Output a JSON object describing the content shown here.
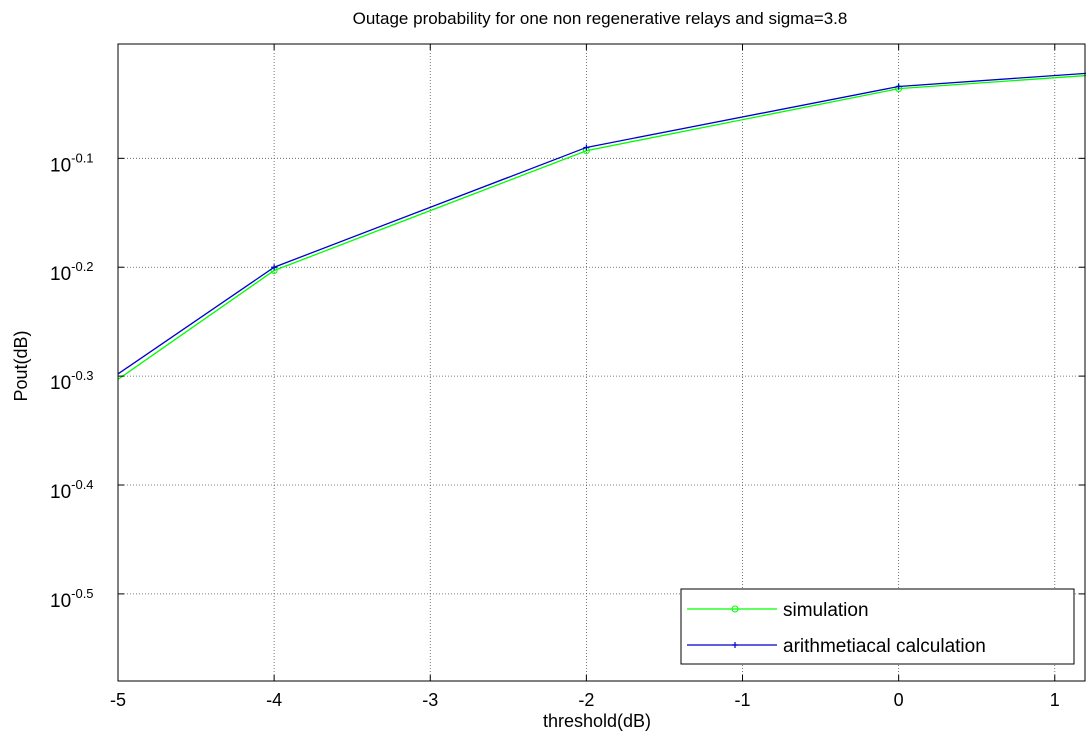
{
  "chart_data": {
    "type": "line",
    "title": "Outage probability for one non regenerative relays and sigma=3.8",
    "xlabel": "threshold(dB)",
    "ylabel": "Pout(dB)",
    "xlim": [
      -5,
      1.2
    ],
    "ylim_log10": [
      -0.58,
      0.005
    ],
    "y_scale": "log",
    "grid": true,
    "x_ticks": [
      "-5",
      "-4",
      "-3",
      "-2",
      "-1",
      "0",
      "1"
    ],
    "x_tick_values": [
      -5,
      -4,
      -3,
      -2,
      -1,
      0,
      1
    ],
    "y_ticks": [
      {
        "base": "10",
        "exp": "-0.1",
        "value_log10": -0.1
      },
      {
        "base": "10",
        "exp": "-0.2",
        "value_log10": -0.2
      },
      {
        "base": "10",
        "exp": "-0.3",
        "value_log10": -0.3
      },
      {
        "base": "10",
        "exp": "-0.4",
        "value_log10": -0.4
      },
      {
        "base": "10",
        "exp": "-0.5",
        "value_log10": -0.5
      }
    ],
    "legend_position": "bottom-right",
    "x": [
      -5,
      -4,
      -2,
      0,
      1.2
    ],
    "series": [
      {
        "name": "simulation",
        "color": "#00ff00",
        "marker": "circle",
        "marker_x": [
          -4,
          -2,
          0
        ],
        "y_log10": [
          -0.303,
          -0.203,
          -0.093,
          -0.036,
          -0.024
        ]
      },
      {
        "name": "arithmetiacal calculation",
        "color": "#0000cc",
        "marker": "plus",
        "marker_x": [
          -4,
          -2,
          0
        ],
        "y_log10": [
          -0.298,
          -0.2,
          -0.09,
          -0.034,
          -0.022
        ]
      }
    ]
  }
}
